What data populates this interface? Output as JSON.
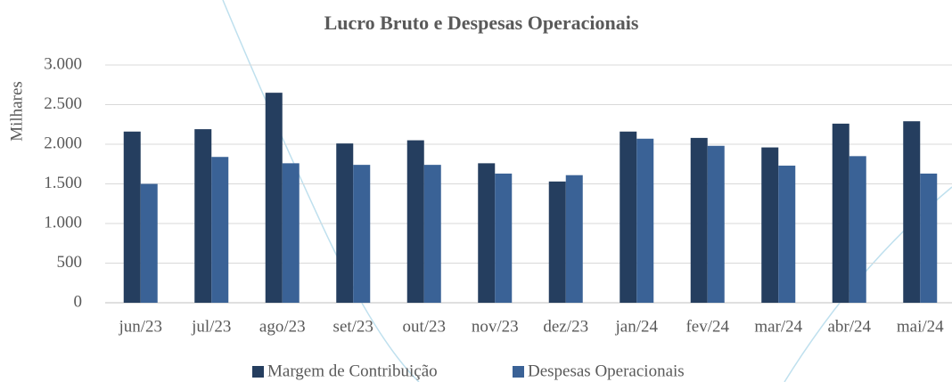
{
  "chart_data": {
    "type": "bar",
    "title": "Lucro Bruto e Despesas Operacionais",
    "y_label": "Milhares",
    "categories": [
      "jun/23",
      "jul/23",
      "ago/23",
      "set/23",
      "out/23",
      "nov/23",
      "dez/23",
      "jan/24",
      "fev/24",
      "mar/24",
      "abr/24",
      "mai/24"
    ],
    "series": [
      {
        "name": "Margem de Contribuição",
        "color": "#253e5f",
        "values": [
          2160,
          2190,
          2650,
          2010,
          2050,
          1760,
          1530,
          2160,
          2080,
          1960,
          2260,
          2290
        ]
      },
      {
        "name": "Despesas Operacionais",
        "color": "#3a6296",
        "values": [
          1500,
          1840,
          1760,
          1740,
          1740,
          1630,
          1610,
          2070,
          1980,
          1730,
          1850,
          1630
        ]
      }
    ],
    "ylim": [
      0,
      3000
    ],
    "yticks": [
      0,
      500,
      {
        "value": 1000,
        "label": "1.000"
      },
      {
        "value": 1500,
        "label": "1.500"
      },
      {
        "value": 2000,
        "label": "2.000"
      },
      {
        "value": 2500,
        "label": "2.500"
      },
      {
        "value": 3000,
        "label": "3.000"
      }
    ],
    "grid": true,
    "legend": "bottom"
  }
}
